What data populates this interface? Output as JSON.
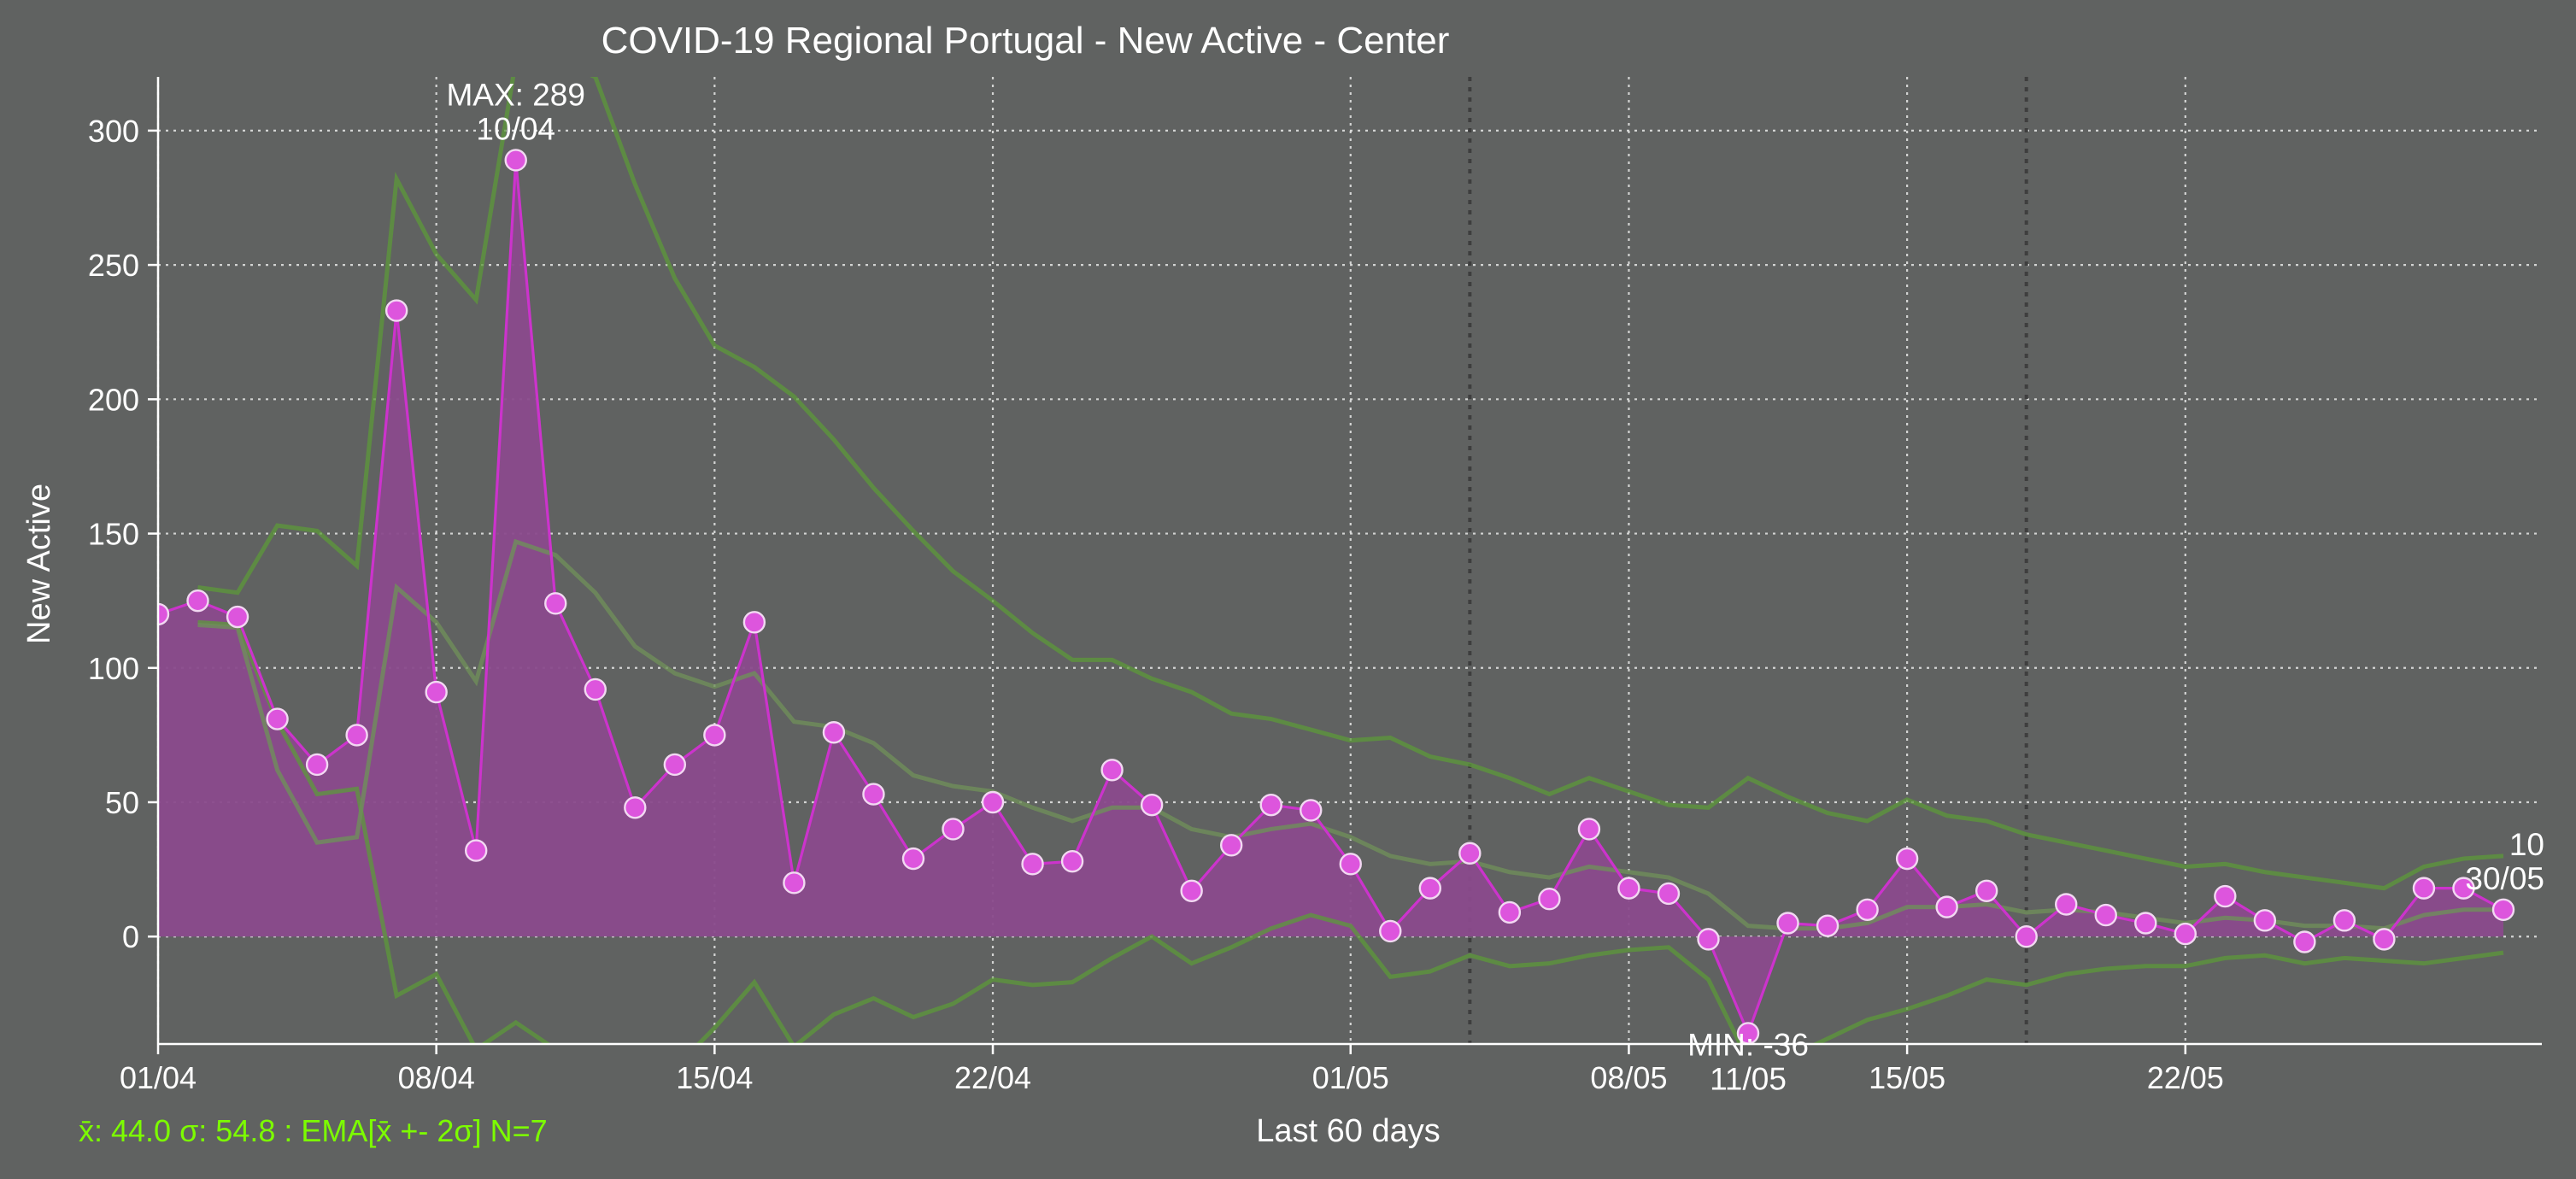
{
  "chart_data": {
    "type": "line",
    "title": "COVID-19 Regional Portugal - New Active - Center",
    "xlabel": "Last 60 days",
    "ylabel": "New Active",
    "ylim": [
      -40,
      320
    ],
    "yticks": [
      0,
      50,
      100,
      150,
      200,
      250,
      300
    ],
    "xticks": [
      {
        "index": 0,
        "label": "01/04"
      },
      {
        "index": 7,
        "label": "08/04"
      },
      {
        "index": 14,
        "label": "15/04"
      },
      {
        "index": 21,
        "label": "22/04"
      },
      {
        "index": 30,
        "label": "01/05"
      },
      {
        "index": 37,
        "label": "08/05"
      },
      {
        "index": 44,
        "label": "15/05"
      },
      {
        "index": 51,
        "label": "22/05"
      }
    ],
    "grid": true,
    "week_markers": [
      33,
      47
    ],
    "x": [
      "01/04",
      "02/04",
      "03/04",
      "04/04",
      "05/04",
      "06/04",
      "07/04",
      "08/04",
      "09/04",
      "10/04",
      "11/04",
      "12/04",
      "13/04",
      "14/04",
      "15/04",
      "16/04",
      "17/04",
      "18/04",
      "19/04",
      "20/04",
      "21/04",
      "22/04",
      "23/04",
      "24/04",
      "25/04",
      "26/04",
      "27/04",
      "28/04",
      "29/04",
      "30/04",
      "01/05",
      "02/05",
      "03/05",
      "04/05",
      "05/05",
      "06/05",
      "07/05",
      "08/05",
      "09/05",
      "10/05",
      "11/05",
      "12/05",
      "13/05",
      "14/05",
      "15/05",
      "16/05",
      "17/05",
      "18/05",
      "19/05",
      "20/05",
      "21/05",
      "22/05",
      "23/05",
      "24/05",
      "25/05",
      "26/05",
      "27/05",
      "28/05",
      "29/05",
      "30/05"
    ],
    "series": [
      {
        "values": [
          120,
          125,
          119,
          81,
          64,
          75,
          233,
          91,
          32,
          289,
          124,
          92,
          48,
          64,
          75,
          117,
          20,
          76,
          53,
          29,
          40,
          50,
          27,
          28,
          62,
          49,
          17,
          34,
          49,
          47,
          27,
          2,
          18,
          31,
          9,
          14,
          40,
          18,
          16,
          -1,
          -36,
          5,
          4,
          10,
          29,
          11,
          17,
          0,
          12,
          8,
          5,
          1,
          15,
          6,
          -2,
          6,
          -1,
          18,
          18,
          10
        ]
      }
    ],
    "ema": [
      null,
      116,
      115,
      62,
      35,
      37,
      130,
      117,
      95,
      147,
      142,
      128,
      108,
      98,
      93,
      98,
      80,
      78,
      72,
      60,
      56,
      54,
      48,
      43,
      48,
      48,
      40,
      37,
      40,
      42,
      37,
      30,
      27,
      28,
      24,
      22,
      26,
      24,
      22,
      16,
      4,
      3,
      3,
      5,
      11,
      11,
      12,
      9,
      10,
      9,
      7,
      5,
      7,
      6,
      4,
      4,
      3,
      8,
      10,
      10
    ],
    "ema_upper": [
      null,
      130,
      128,
      153,
      151,
      138,
      282,
      254,
      237,
      326,
      326,
      320,
      280,
      245,
      220,
      212,
      201,
      185,
      167,
      151,
      136,
      125,
      113,
      103,
      103,
      96,
      91,
      83,
      81,
      77,
      73,
      74,
      67,
      64,
      59,
      53,
      59,
      54,
      49,
      48,
      59,
      52,
      46,
      43,
      51,
      45,
      43,
      38,
      35,
      32,
      29,
      26,
      27,
      24,
      22,
      20,
      18,
      26,
      29,
      30
    ],
    "ema_lower": [
      null,
      117,
      116,
      80,
      53,
      55,
      -22,
      -14,
      -42,
      -32,
      -42,
      -64,
      -64,
      -49,
      -34,
      -17,
      -41,
      -29,
      -23,
      -30,
      -25,
      -16,
      -18,
      -17,
      -8,
      0,
      -10,
      -4,
      3,
      8,
      4,
      -15,
      -13,
      -7,
      -11,
      -10,
      -7,
      -5,
      -4,
      -16,
      -46,
      -45,
      -38,
      -31,
      -27,
      -22,
      -16,
      -18,
      -14,
      -12,
      -11,
      -11,
      -8,
      -7,
      -10,
      -8,
      -9,
      -10,
      -8,
      -6
    ],
    "annotations": [
      {
        "index": 9,
        "value": 289,
        "line1": "MAX: 289",
        "line2": "10/04",
        "position": "above"
      },
      {
        "index": 40,
        "value": -36,
        "line1": "MIN: -36",
        "line2": "11/05",
        "position": "below"
      },
      {
        "index": 59,
        "value": 10,
        "line1": "10",
        "line2": "30/05",
        "position": "above"
      }
    ],
    "stats_text": "x̄: 44.0 σ: 54.8 : EMA[x̄ +- 2σ] N=7",
    "colors": {
      "background": "#606261",
      "series": "#cc33cc",
      "area": "#8a4a8c",
      "band": "#5c9a3a",
      "ema": "#6f8f5a",
      "stats": "#7cfc00"
    }
  }
}
